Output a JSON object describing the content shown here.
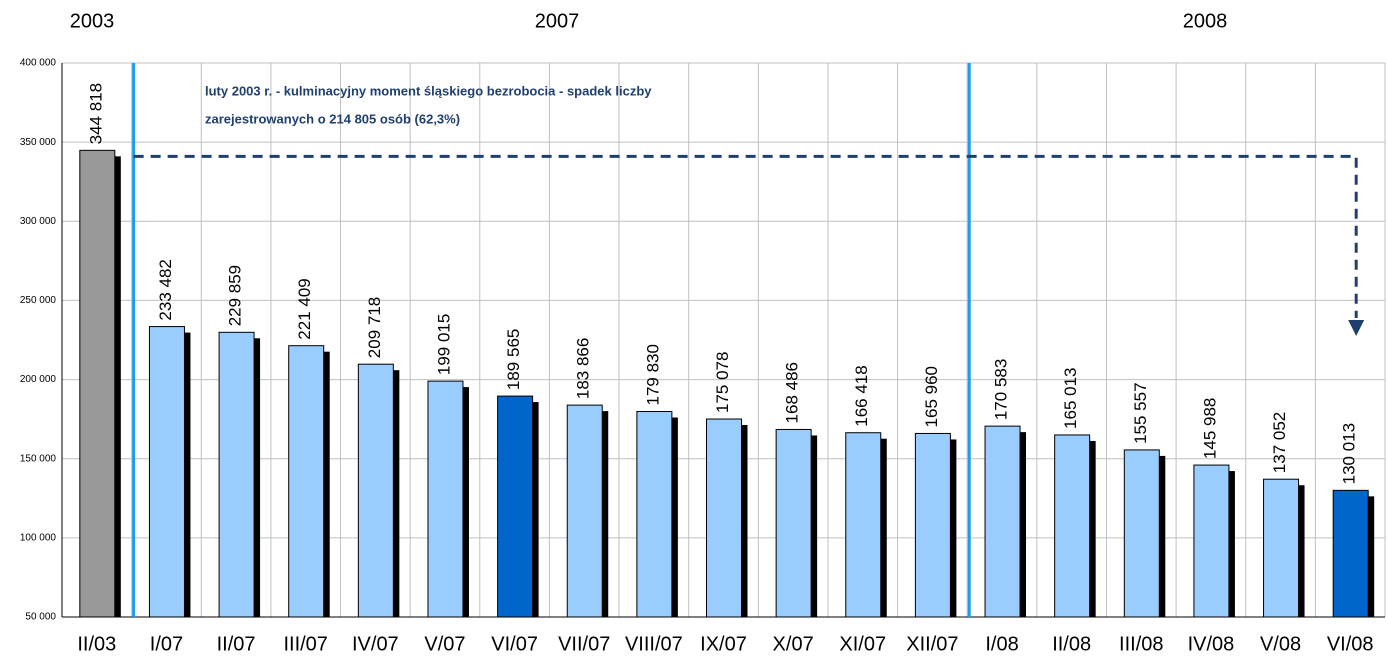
{
  "chart_data": {
    "type": "bar",
    "annotations": [
      "2003",
      "2007",
      "2008",
      "luty 2003 r. - kulminacyjny moment śląskiego bezrobocia - spadek liczby",
      "zarejestrowanych o 214 805 osób (62,3%)"
    ],
    "categories": [
      "II/03",
      "I/07",
      "II/07",
      "III/07",
      "IV/07",
      "V/07",
      "VI/07",
      "VII/07",
      "VIII/07",
      "IX/07",
      "X/07",
      "XI/07",
      "XII/07",
      "I/08",
      "II/08",
      "III/08",
      "IV/08",
      "V/08",
      "VI/08"
    ],
    "values": [
      344818,
      233482,
      229859,
      221409,
      209718,
      199015,
      189565,
      183866,
      179830,
      175078,
      168486,
      166418,
      165960,
      170583,
      165013,
      155557,
      145988,
      137052,
      130013
    ],
    "value_labels": [
      "344 818",
      "233 482",
      "229 859",
      "221 409",
      "209 718",
      "199 015",
      "189 565",
      "183 866",
      "179 830",
      "175 078",
      "168 486",
      "166 418",
      "165 960",
      "170 583",
      "165 013",
      "155 557",
      "145 988",
      "137 052",
      "130 013"
    ],
    "colors": [
      "#999999",
      "#99ccff",
      "#99ccff",
      "#99ccff",
      "#99ccff",
      "#99ccff",
      "#0066cc",
      "#99ccff",
      "#99ccff",
      "#99ccff",
      "#99ccff",
      "#99ccff",
      "#99ccff",
      "#99ccff",
      "#99ccff",
      "#99ccff",
      "#99ccff",
      "#99ccff",
      "#0066cc"
    ],
    "ylim": [
      50000,
      400000
    ],
    "yticks": [
      {
        "value": 50000,
        "label": "50 000"
      },
      {
        "value": 100000,
        "label": "100 000"
      },
      {
        "value": 150000,
        "label": "150 000"
      },
      {
        "value": 200000,
        "label": "200 000"
      },
      {
        "value": 250000,
        "label": "250 000"
      },
      {
        "value": 300000,
        "label": "300 000"
      },
      {
        "value": 350000,
        "label": "350 000"
      },
      {
        "value": 400000,
        "label": "400 000"
      }
    ],
    "grid": true
  }
}
